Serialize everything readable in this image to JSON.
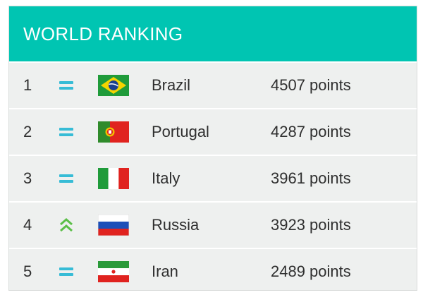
{
  "title": "WORLD RANKING",
  "rankings": [
    {
      "rank": "1",
      "trend": "same",
      "country": "Brazil",
      "points": "4507 points",
      "flag": "brazil-flag-icon"
    },
    {
      "rank": "2",
      "trend": "same",
      "country": "Portugal",
      "points": "4287 points",
      "flag": "portugal-flag-icon"
    },
    {
      "rank": "3",
      "trend": "same",
      "country": "Italy",
      "points": "3961 points",
      "flag": "italy-flag-icon"
    },
    {
      "rank": "4",
      "trend": "up",
      "country": "Russia",
      "points": "3923 points",
      "flag": "russia-flag-icon"
    },
    {
      "rank": "5",
      "trend": "same",
      "country": "Iran",
      "points": "2489 points",
      "flag": "iran-flag-icon"
    }
  ],
  "colors": {
    "header": "#00c5b2",
    "same_icon": "#37bcd6",
    "up_icon": "#5bbf48"
  }
}
